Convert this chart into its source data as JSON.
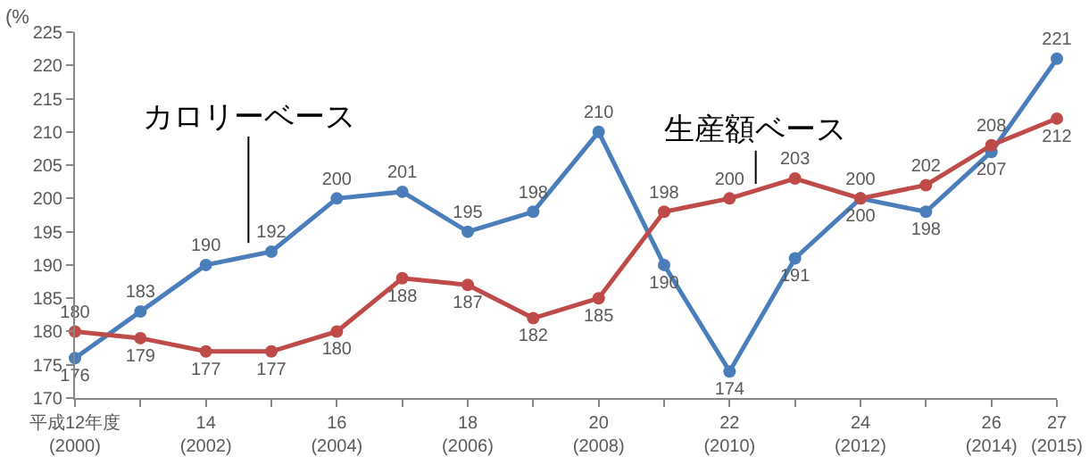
{
  "chart_data": {
    "type": "line",
    "ylabel": "(%",
    "categories": [
      "平成12年度\n(2000)",
      null,
      "14\n(2002)",
      null,
      "16\n(2004)",
      null,
      "18\n(2006)",
      null,
      "20\n(2008)",
      null,
      "22\n(2010)",
      null,
      "24\n(2012)",
      null,
      "26\n(2014)",
      "27\n(2015)"
    ],
    "series": [
      {
        "name": "カロリーベース",
        "color": "#4a7ebb",
        "values": [
          176,
          183,
          190,
          192,
          200,
          201,
          195,
          198,
          210,
          190,
          174,
          191,
          200,
          198,
          207,
          221
        ]
      },
      {
        "name": "生産額ベース",
        "color": "#be4b48",
        "values": [
          180,
          179,
          177,
          177,
          180,
          188,
          187,
          182,
          185,
          198,
          200,
          203,
          200,
          202,
          208,
          212
        ]
      }
    ],
    "ylim": [
      170,
      225
    ],
    "yticks": [
      170,
      175,
      180,
      185,
      190,
      195,
      200,
      205,
      210,
      215,
      220,
      225
    ],
    "grid": false,
    "legend": false,
    "marker": "circle",
    "line_style": "solid",
    "data_labels": true
  }
}
